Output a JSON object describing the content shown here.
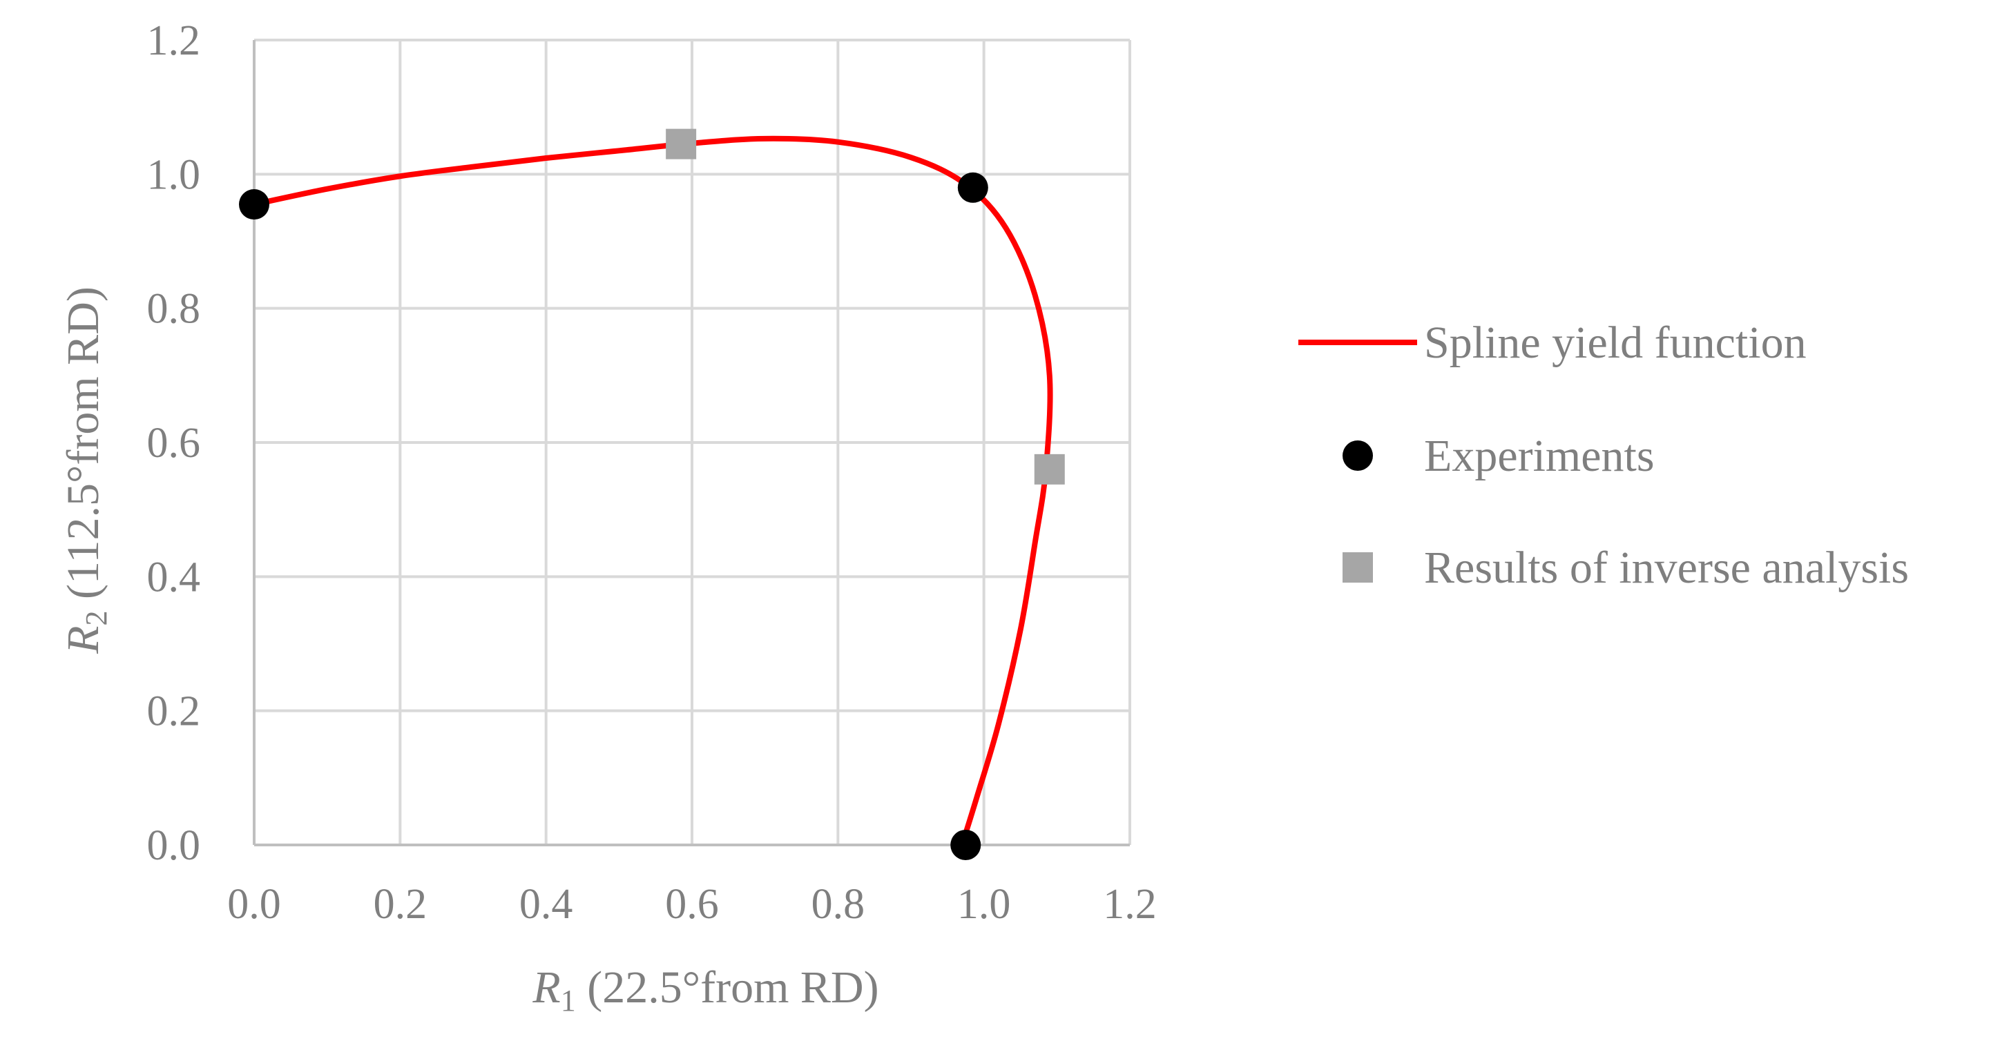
{
  "chart_data": {
    "type": "scatter",
    "title": "",
    "xlabel": {
      "var": "R",
      "sub": "1",
      "rest": " (22.5°from RD)"
    },
    "ylabel": {
      "var": "R",
      "sub": "2",
      "rest": " (112.5°from RD)"
    },
    "xlim": [
      0,
      1.2
    ],
    "ylim": [
      0,
      1.2
    ],
    "xticks": [
      "0.0",
      "0.2",
      "0.4",
      "0.6",
      "0.8",
      "1.0",
      "1.2"
    ],
    "yticks": [
      "0.0",
      "0.2",
      "0.4",
      "0.6",
      "0.8",
      "1.0",
      "1.2"
    ],
    "grid": true,
    "legend_position": "right",
    "colors": {
      "curve": "#ff0000",
      "experiments": "#000000",
      "inverse": "#a6a6a6",
      "grid": "#d9d9d9",
      "axis": "#bfbfbf",
      "text": "#7f7f7f"
    },
    "series": [
      {
        "name": "Spline yield function",
        "kind": "line",
        "points": [
          [
            0.0,
            0.955
          ],
          [
            0.1,
            0.978
          ],
          [
            0.2,
            0.997
          ],
          [
            0.3,
            1.011
          ],
          [
            0.4,
            1.024
          ],
          [
            0.5,
            1.035
          ],
          [
            0.6,
            1.046
          ],
          [
            0.7,
            1.053
          ],
          [
            0.8,
            1.048
          ],
          [
            0.9,
            1.025
          ],
          [
            0.975,
            0.985
          ],
          [
            1.03,
            0.92
          ],
          [
            1.07,
            0.82
          ],
          [
            1.09,
            0.7
          ],
          [
            1.085,
            0.56
          ],
          [
            1.07,
            0.45
          ],
          [
            1.05,
            0.32
          ],
          [
            1.02,
            0.18
          ],
          [
            0.99,
            0.07
          ],
          [
            0.97,
            0.0
          ]
        ]
      },
      {
        "name": "Experiments",
        "kind": "marker-circle",
        "points": [
          [
            0.0,
            0.955
          ],
          [
            0.985,
            0.98
          ],
          [
            0.975,
            0.0
          ]
        ]
      },
      {
        "name": "Results of inverse analysis",
        "kind": "marker-square",
        "points": [
          [
            0.585,
            1.045
          ],
          [
            1.09,
            0.56
          ]
        ]
      }
    ]
  }
}
